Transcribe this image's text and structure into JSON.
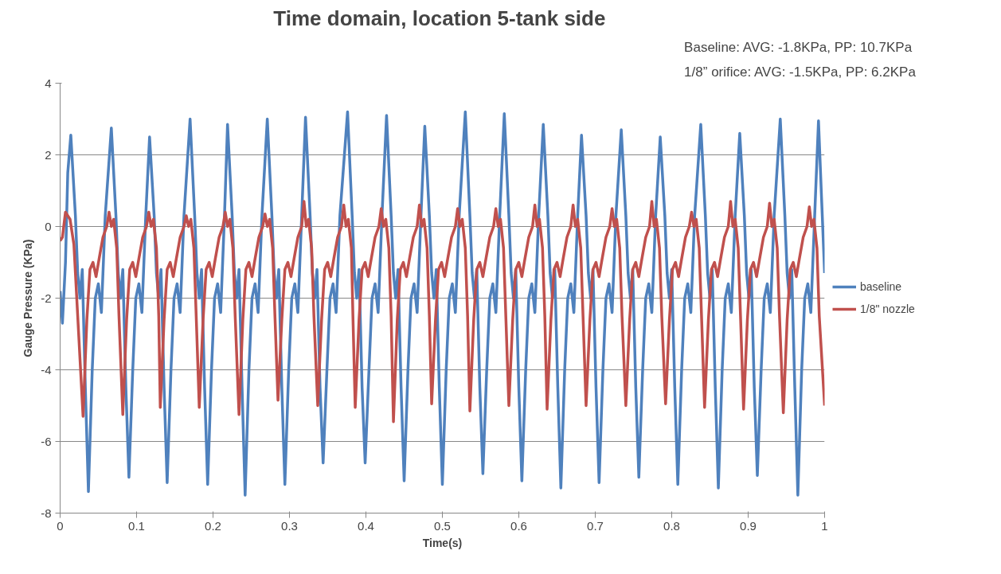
{
  "chart_data": {
    "type": "line",
    "title": "Time domain,  location 5-tank side",
    "xlabel": "Time(s)",
    "ylabel": "Gauge Pressure (KPa)",
    "annotations": [
      "Baseline:   AVG: -1.8KPa, PP: 10.7KPa",
      "1/8” orifice: AVG: -1.5KPa, PP:  6.2KPa"
    ],
    "xlim": [
      0,
      1
    ],
    "xticks": [
      0,
      0.1,
      0.2,
      0.3,
      0.4,
      0.5,
      0.6,
      0.7,
      0.8,
      0.9,
      1
    ],
    "ylim": [
      -8,
      4
    ],
    "yticks": [
      -8,
      -6,
      -4,
      -2,
      0,
      2,
      4
    ],
    "grid": "y",
    "legend": "right",
    "line_style": "solid",
    "marker": "none",
    "series": [
      {
        "name": "baseline",
        "color": "#4f81bd",
        "x": [
          0,
          0.003,
          0.007,
          0.01,
          0.014,
          0.02,
          0.023,
          0.026,
          0.029,
          0.033,
          0.037,
          0.042,
          0.046,
          0.05,
          0.054,
          0.059,
          0.067,
          0.073,
          0.076,
          0.079,
          0.082,
          0.086,
          0.09,
          0.095,
          0.099,
          0.103,
          0.107,
          0.112,
          0.117,
          0.123,
          0.126,
          0.129,
          0.132,
          0.136,
          0.14,
          0.145,
          0.149,
          0.153,
          0.157,
          0.162,
          0.17,
          0.176,
          0.179,
          0.182,
          0.185,
          0.189,
          0.193,
          0.198,
          0.202,
          0.206,
          0.21,
          0.215,
          0.219,
          0.225,
          0.228,
          0.231,
          0.234,
          0.238,
          0.242,
          0.247,
          0.251,
          0.255,
          0.259,
          0.264,
          0.271,
          0.277,
          0.28,
          0.283,
          0.286,
          0.29,
          0.294,
          0.299,
          0.303,
          0.307,
          0.311,
          0.316,
          0.321,
          0.327,
          0.33,
          0.333,
          0.336,
          0.34,
          0.344,
          0.349,
          0.353,
          0.357,
          0.361,
          0.366,
          0.376,
          0.382,
          0.385,
          0.388,
          0.391,
          0.395,
          0.399,
          0.404,
          0.408,
          0.412,
          0.416,
          0.421,
          0.427,
          0.433,
          0.436,
          0.439,
          0.442,
          0.446,
          0.45,
          0.455,
          0.459,
          0.463,
          0.467,
          0.472,
          0.477,
          0.483,
          0.486,
          0.489,
          0.492,
          0.496,
          0.5,
          0.505,
          0.509,
          0.513,
          0.517,
          0.522,
          0.53,
          0.536,
          0.539,
          0.542,
          0.545,
          0.549,
          0.553,
          0.558,
          0.562,
          0.566,
          0.57,
          0.575,
          0.581,
          0.587,
          0.59,
          0.593,
          0.596,
          0.6,
          0.604,
          0.609,
          0.613,
          0.617,
          0.621,
          0.626,
          0.632,
          0.638,
          0.641,
          0.644,
          0.647,
          0.651,
          0.655,
          0.66,
          0.664,
          0.668,
          0.672,
          0.677,
          0.682,
          0.688,
          0.691,
          0.694,
          0.697,
          0.701,
          0.705,
          0.71,
          0.714,
          0.718,
          0.722,
          0.727,
          0.734,
          0.74,
          0.743,
          0.746,
          0.749,
          0.753,
          0.757,
          0.762,
          0.766,
          0.77,
          0.774,
          0.779,
          0.785,
          0.791,
          0.794,
          0.797,
          0.8,
          0.804,
          0.808,
          0.813,
          0.817,
          0.821,
          0.825,
          0.83,
          0.838,
          0.844,
          0.847,
          0.85,
          0.853,
          0.857,
          0.861,
          0.866,
          0.87,
          0.874,
          0.878,
          0.883,
          0.889,
          0.895,
          0.898,
          0.901,
          0.904,
          0.908,
          0.912,
          0.917,
          0.921,
          0.925,
          0.929,
          0.934,
          0.942,
          0.948,
          0.951,
          0.954,
          0.957,
          0.961,
          0.965,
          0.97,
          0.974,
          0.978,
          0.982,
          0.987,
          0.992,
          0.996,
          1.0
        ],
        "values": [
          -1.8,
          -2.7,
          -1.0,
          1.5,
          2.55,
          0.3,
          -1.3,
          -2.0,
          -1.2,
          -4.5,
          -7.4,
          -4.0,
          -2.0,
          -1.6,
          -2.4,
          0.3,
          2.75,
          0.3,
          -1.3,
          -2.0,
          -1.2,
          -4.5,
          -7.0,
          -4.0,
          -2.0,
          -1.6,
          -2.4,
          0.3,
          2.5,
          0.3,
          -1.3,
          -2.0,
          -1.2,
          -4.5,
          -7.15,
          -4.0,
          -2.0,
          -1.6,
          -2.4,
          0.3,
          3.0,
          0.3,
          -1.3,
          -2.0,
          -1.2,
          -4.5,
          -7.2,
          -4.0,
          -2.0,
          -1.6,
          -2.4,
          0.3,
          2.85,
          0.3,
          -1.3,
          -2.0,
          -1.2,
          -4.5,
          -7.5,
          -4.0,
          -2.0,
          -1.6,
          -2.4,
          0.3,
          3.0,
          0.3,
          -1.3,
          -2.0,
          -1.2,
          -4.5,
          -7.2,
          -4.0,
          -2.0,
          -1.6,
          -2.4,
          0.3,
          3.05,
          0.3,
          -1.3,
          -2.0,
          -1.2,
          -4.5,
          -6.6,
          -4.0,
          -2.0,
          -1.6,
          -2.4,
          0.3,
          3.2,
          0.3,
          -1.3,
          -2.0,
          -1.2,
          -4.5,
          -6.6,
          -4.0,
          -2.0,
          -1.6,
          -2.4,
          0.3,
          3.1,
          0.3,
          -1.3,
          -2.0,
          -1.2,
          -4.5,
          -7.1,
          -4.0,
          -2.0,
          -1.6,
          -2.4,
          0.3,
          2.8,
          0.3,
          -1.3,
          -2.0,
          -1.2,
          -4.5,
          -7.2,
          -4.0,
          -2.0,
          -1.6,
          -2.4,
          0.3,
          3.2,
          0.3,
          -1.3,
          -2.0,
          -1.2,
          -4.5,
          -6.9,
          -4.0,
          -2.0,
          -1.6,
          -2.4,
          0.3,
          3.15,
          0.3,
          -1.3,
          -2.0,
          -1.2,
          -4.5,
          -7.1,
          -4.0,
          -2.0,
          -1.6,
          -2.4,
          0.3,
          2.85,
          0.3,
          -1.3,
          -2.0,
          -1.2,
          -4.5,
          -7.3,
          -4.0,
          -2.0,
          -1.6,
          -2.4,
          0.3,
          2.55,
          0.3,
          -1.3,
          -2.0,
          -1.2,
          -4.5,
          -7.15,
          -4.0,
          -2.0,
          -1.6,
          -2.4,
          0.3,
          2.7,
          0.3,
          -1.3,
          -2.0,
          -1.2,
          -4.5,
          -7.0,
          -4.0,
          -2.0,
          -1.6,
          -2.4,
          0.3,
          2.5,
          0.3,
          -1.3,
          -2.0,
          -1.2,
          -4.5,
          -7.2,
          -4.0,
          -2.0,
          -1.6,
          -2.4,
          0.3,
          2.85,
          0.3,
          -1.3,
          -2.0,
          -1.2,
          -4.5,
          -7.3,
          -4.0,
          -2.0,
          -1.6,
          -2.4,
          0.3,
          2.6,
          0.3,
          -1.3,
          -2.0,
          -1.2,
          -4.5,
          -6.95,
          -4.0,
          -2.0,
          -1.6,
          -2.4,
          0.3,
          3.0,
          0.3,
          -1.3,
          -2.0,
          -1.2,
          -4.5,
          -7.5,
          -4.0,
          -2.0,
          -1.6,
          -2.4,
          0.3,
          2.95,
          0.8,
          -1.3
        ]
      },
      {
        "name": "1/8\" nozzle",
        "color": "#c0504d",
        "x": [
          0,
          0.003,
          0.007,
          0.013,
          0.018,
          0.023,
          0.03,
          0.035,
          0.039,
          0.043,
          0.047,
          0.051,
          0.056,
          0.061,
          0.064,
          0.067,
          0.07,
          0.074,
          0.077,
          0.082,
          0.087,
          0.091,
          0.095,
          0.099,
          0.103,
          0.108,
          0.113,
          0.116,
          0.119,
          0.122,
          0.126,
          0.129,
          0.131,
          0.136,
          0.14,
          0.144,
          0.148,
          0.152,
          0.157,
          0.162,
          0.165,
          0.168,
          0.171,
          0.175,
          0.178,
          0.182,
          0.187,
          0.191,
          0.195,
          0.199,
          0.203,
          0.208,
          0.213,
          0.216,
          0.219,
          0.222,
          0.226,
          0.229,
          0.234,
          0.239,
          0.243,
          0.247,
          0.251,
          0.255,
          0.26,
          0.265,
          0.268,
          0.271,
          0.274,
          0.278,
          0.281,
          0.285,
          0.29,
          0.294,
          0.298,
          0.302,
          0.306,
          0.311,
          0.316,
          0.319,
          0.322,
          0.325,
          0.329,
          0.332,
          0.337,
          0.342,
          0.346,
          0.35,
          0.354,
          0.358,
          0.363,
          0.368,
          0.371,
          0.374,
          0.377,
          0.381,
          0.383,
          0.386,
          0.391,
          0.395,
          0.399,
          0.403,
          0.407,
          0.412,
          0.417,
          0.42,
          0.423,
          0.426,
          0.43,
          0.433,
          0.436,
          0.441,
          0.445,
          0.449,
          0.453,
          0.457,
          0.462,
          0.467,
          0.47,
          0.473,
          0.476,
          0.48,
          0.483,
          0.486,
          0.491,
          0.495,
          0.499,
          0.503,
          0.507,
          0.512,
          0.517,
          0.52,
          0.523,
          0.526,
          0.53,
          0.533,
          0.536,
          0.541,
          0.545,
          0.549,
          0.553,
          0.557,
          0.562,
          0.567,
          0.57,
          0.573,
          0.576,
          0.58,
          0.583,
          0.587,
          0.592,
          0.596,
          0.6,
          0.604,
          0.608,
          0.613,
          0.618,
          0.621,
          0.624,
          0.627,
          0.631,
          0.634,
          0.637,
          0.642,
          0.646,
          0.65,
          0.654,
          0.658,
          0.663,
          0.668,
          0.671,
          0.674,
          0.677,
          0.681,
          0.684,
          0.688,
          0.693,
          0.697,
          0.701,
          0.705,
          0.709,
          0.714,
          0.719,
          0.722,
          0.725,
          0.728,
          0.732,
          0.735,
          0.74,
          0.745,
          0.749,
          0.753,
          0.757,
          0.761,
          0.766,
          0.771,
          0.774,
          0.777,
          0.78,
          0.784,
          0.787,
          0.792,
          0.797,
          0.801,
          0.805,
          0.809,
          0.813,
          0.818,
          0.823,
          0.826,
          0.829,
          0.832,
          0.836,
          0.839,
          0.843,
          0.848,
          0.852,
          0.856,
          0.86,
          0.864,
          0.869,
          0.874,
          0.877,
          0.88,
          0.883,
          0.887,
          0.89,
          0.894,
          0.899,
          0.903,
          0.907,
          0.911,
          0.915,
          0.92,
          0.925,
          0.928,
          0.931,
          0.934,
          0.938,
          0.941,
          0.946,
          0.951,
          0.955,
          0.959,
          0.963,
          0.967,
          0.972,
          0.977,
          0.98,
          0.983,
          0.986,
          0.99,
          0.993,
          1.0
        ],
        "values": [
          -0.4,
          -0.3,
          0.4,
          0.2,
          -0.5,
          -2.5,
          -5.3,
          -2.6,
          -1.2,
          -1.0,
          -1.4,
          -0.9,
          -0.3,
          0.0,
          0.4,
          0.0,
          0.2,
          -0.6,
          -2.5,
          -5.25,
          -2.6,
          -1.2,
          -1.0,
          -1.4,
          -0.9,
          -0.3,
          0.0,
          0.4,
          0.0,
          0.2,
          -0.6,
          -2.5,
          -5.05,
          -2.6,
          -1.2,
          -1.0,
          -1.4,
          -0.9,
          -0.3,
          0.0,
          0.3,
          0.0,
          0.2,
          -0.6,
          -2.5,
          -5.05,
          -2.6,
          -1.2,
          -1.0,
          -1.4,
          -0.9,
          -0.3,
          0.0,
          0.4,
          0.0,
          0.2,
          -0.6,
          -2.5,
          -5.25,
          -2.6,
          -1.2,
          -1.0,
          -1.4,
          -0.9,
          -0.3,
          0.0,
          0.35,
          0.0,
          0.2,
          -0.6,
          -2.5,
          -4.85,
          -2.6,
          -1.2,
          -1.0,
          -1.4,
          -0.9,
          -0.3,
          0.0,
          0.7,
          0.0,
          0.2,
          -0.6,
          -2.5,
          -5.0,
          -2.6,
          -1.2,
          -1.0,
          -1.4,
          -0.9,
          -0.3,
          0.0,
          0.6,
          0.0,
          0.2,
          -0.6,
          -2.5,
          -5.05,
          -2.6,
          -1.2,
          -1.0,
          -1.4,
          -0.9,
          -0.3,
          0.0,
          0.5,
          0.0,
          0.2,
          -0.6,
          -2.5,
          -5.45,
          -2.6,
          -1.2,
          -1.0,
          -1.4,
          -0.9,
          -0.3,
          0.0,
          0.6,
          0.0,
          0.2,
          -0.6,
          -2.5,
          -4.95,
          -2.6,
          -1.2,
          -1.0,
          -1.4,
          -0.9,
          -0.3,
          0.0,
          0.5,
          0.0,
          0.2,
          -0.6,
          -2.5,
          -5.15,
          -2.6,
          -1.2,
          -1.0,
          -1.4,
          -0.9,
          -0.3,
          0.0,
          0.5,
          0.0,
          0.2,
          -0.6,
          -2.5,
          -5.0,
          -2.6,
          -1.2,
          -1.0,
          -1.4,
          -0.9,
          -0.3,
          0.0,
          0.6,
          0.0,
          0.2,
          -0.6,
          -2.5,
          -5.1,
          -2.6,
          -1.2,
          -1.0,
          -1.4,
          -0.9,
          -0.3,
          0.0,
          0.6,
          0.0,
          0.2,
          -0.6,
          -2.5,
          -5.0,
          -2.6,
          -1.2,
          -1.0,
          -1.4,
          -0.9,
          -0.3,
          0.0,
          0.5,
          0.0,
          0.2,
          -0.6,
          -2.5,
          -5.0,
          -2.6,
          -1.2,
          -1.0,
          -1.4,
          -0.9,
          -0.3,
          0.0,
          0.7,
          0.0,
          0.2,
          -0.6,
          -2.5,
          -4.95,
          -2.6,
          -1.2,
          -1.0,
          -1.4,
          -0.9,
          -0.3,
          0.0,
          0.4,
          0.0,
          0.2,
          -0.6,
          -2.5,
          -5.05,
          -2.6,
          -1.2,
          -1.0,
          -1.4,
          -0.9,
          -0.3,
          0.0,
          0.7,
          0.0,
          0.2,
          -0.6,
          -2.5,
          -5.1,
          -2.6,
          -1.2,
          -1.0,
          -1.4,
          -0.9,
          -0.3,
          0.0,
          0.65,
          0.0,
          0.2,
          -0.6,
          -2.5,
          -5.2,
          -2.6,
          -1.2,
          -1.0,
          -1.4,
          -0.9,
          -0.3,
          0.0,
          0.55,
          0.0,
          0.2,
          -0.6,
          -2.5,
          -5.0
        ]
      }
    ]
  }
}
